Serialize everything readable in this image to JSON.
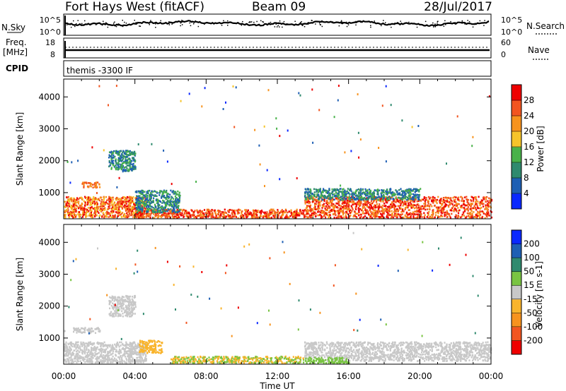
{
  "header": {
    "station": "Fort Hays West (fitACF)",
    "beam": "Beam 09",
    "date": "28/Jul/2017"
  },
  "panels": {
    "nsky_label": "N.Sky",
    "nsearch_label": "N.Search",
    "freq_label_1": "Freq.",
    "freq_label_2": "[MHz]",
    "nave_label": "Nave",
    "cpid_label": "CPID",
    "cpid_text": "themis -3300 IF",
    "nsky_ticks": [
      "10^5",
      "10^0"
    ],
    "nsearch_ticks": [
      "10^5",
      "10^0"
    ],
    "freq_ticks": [
      "18",
      "8"
    ],
    "nave_ticks": [
      "60",
      "0"
    ]
  },
  "axes": {
    "xlabel": "Time UT",
    "ylabel": "Slant Range [km]",
    "xticks": [
      "00:00",
      "04:00",
      "08:00",
      "12:00",
      "16:00",
      "20:00",
      "00:00"
    ],
    "yticks": [
      1000,
      2000,
      3000,
      4000
    ],
    "ylim": [
      180,
      4560
    ]
  },
  "colors": {
    "power": [
      "#0a28ff",
      "#1e5fb4",
      "#2f8a6e",
      "#49b24a",
      "#f6c42a",
      "#f7931e",
      "#f25520",
      "#ee0000"
    ],
    "velocity": [
      "#ee0000",
      "#f25520",
      "#f7931e",
      "#f9b42c",
      "#c8c8c8",
      "#79c442",
      "#2f8a6e",
      "#1e5fb4",
      "#0a28ff"
    ]
  },
  "chart_data": [
    {
      "type": "heatmap",
      "name": "power-panel",
      "colorbar_label": "Power [dB]",
      "colorbar_ticks": [
        "28",
        "24",
        "20",
        "16",
        "12",
        "8",
        "4"
      ],
      "x_unit": "hours UT",
      "y_unit": "km",
      "regions": [
        {
          "t0": 0.0,
          "t1": 4.6,
          "r0": 250,
          "r1": 900,
          "levels": [
            4,
            5,
            6,
            7
          ]
        },
        {
          "t0": 1.0,
          "t1": 2.0,
          "r0": 1180,
          "r1": 1350,
          "levels": [
            5,
            6
          ]
        },
        {
          "t0": 2.5,
          "t1": 4.0,
          "r0": 1700,
          "r1": 2350,
          "levels": [
            1,
            2,
            3
          ]
        },
        {
          "t0": 4.0,
          "t1": 13.5,
          "r0": 230,
          "r1": 500,
          "levels": [
            5,
            6,
            7
          ]
        },
        {
          "t0": 4.0,
          "t1": 6.5,
          "r0": 400,
          "r1": 1100,
          "levels": [
            1,
            2,
            3
          ]
        },
        {
          "t0": 13.5,
          "t1": 24.0,
          "r0": 230,
          "r1": 900,
          "levels": [
            5,
            6,
            7
          ]
        },
        {
          "t0": 13.5,
          "t1": 20.0,
          "r0": 800,
          "r1": 1150,
          "levels": [
            1,
            2,
            3
          ]
        }
      ]
    },
    {
      "type": "heatmap",
      "name": "velocity-panel",
      "colorbar_label": "Velocity [m s-1]",
      "colorbar_ticks": [
        "200",
        "100",
        "50",
        "15",
        "-15",
        "-50",
        "-100",
        "-200"
      ],
      "x_unit": "hours UT",
      "y_unit": "km",
      "regions": [
        {
          "t0": 0.0,
          "t1": 4.6,
          "r0": 250,
          "r1": 900,
          "levels": [
            4
          ]
        },
        {
          "t0": 0.5,
          "t1": 2.0,
          "r0": 1180,
          "r1": 1350,
          "levels": [
            4
          ]
        },
        {
          "t0": 2.5,
          "t1": 4.0,
          "r0": 1700,
          "r1": 2350,
          "levels": [
            4
          ]
        },
        {
          "t0": 4.2,
          "t1": 5.5,
          "r0": 550,
          "r1": 950,
          "levels": [
            3
          ]
        },
        {
          "t0": 6.0,
          "t1": 13.5,
          "r0": 230,
          "r1": 450,
          "levels": [
            3,
            5
          ]
        },
        {
          "t0": 13.5,
          "t1": 24.0,
          "r0": 300,
          "r1": 900,
          "levels": [
            4
          ]
        },
        {
          "t0": 13.5,
          "t1": 16.0,
          "r0": 230,
          "r1": 420,
          "levels": [
            5
          ]
        }
      ]
    }
  ]
}
